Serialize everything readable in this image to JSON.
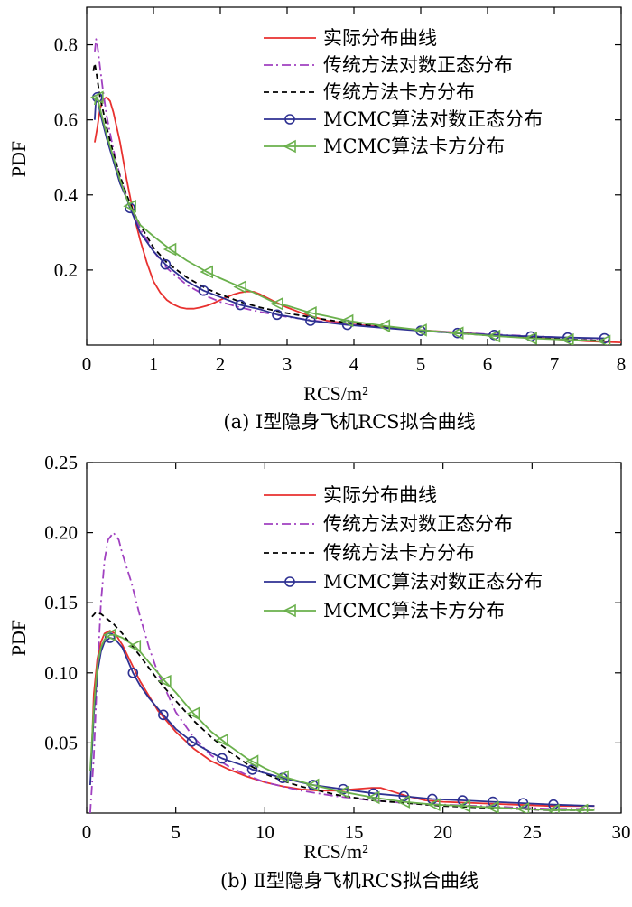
{
  "chart_data": [
    {
      "type": "line",
      "panel": "a",
      "caption": "(a) Ⅰ型隐身飞机RCS拟合曲线",
      "xlabel": "RCS/m²",
      "ylabel": "PDF",
      "xlim": [
        0,
        8
      ],
      "ylim": [
        0,
        0.9
      ],
      "xticks": [
        0,
        1,
        2,
        3,
        4,
        5,
        6,
        7,
        8
      ],
      "xtick_labels": [
        "0",
        "1",
        "2",
        "3",
        "4",
        "5",
        "6",
        "7",
        "8"
      ],
      "yticks": [
        0.2,
        0.4,
        0.6,
        0.8
      ],
      "ytick_labels": [
        "0.2",
        "0.4",
        "0.6",
        "0.8"
      ],
      "legend_position": "top-right",
      "series": [
        {
          "name": "实际分布曲线",
          "color": "#e8312f",
          "style": "solid",
          "marker": "none",
          "x": [
            0.12,
            0.16,
            0.2,
            0.25,
            0.3,
            0.35,
            0.4,
            0.5,
            0.6,
            0.7,
            0.8,
            0.9,
            1.0,
            1.1,
            1.2,
            1.3,
            1.4,
            1.5,
            1.6,
            1.7,
            1.8,
            1.9,
            2.0,
            2.1,
            2.2,
            2.3,
            2.4,
            2.5,
            2.6,
            2.8,
            3.0,
            3.3,
            3.6,
            4.0,
            4.5,
            5.0,
            5.5,
            6.0,
            6.5,
            7.0,
            7.5,
            8.0
          ],
          "y": [
            0.54,
            0.58,
            0.63,
            0.655,
            0.66,
            0.65,
            0.62,
            0.54,
            0.44,
            0.35,
            0.28,
            0.22,
            0.17,
            0.14,
            0.12,
            0.108,
            0.1,
            0.097,
            0.097,
            0.1,
            0.105,
            0.112,
            0.12,
            0.128,
            0.135,
            0.14,
            0.143,
            0.142,
            0.135,
            0.117,
            0.1,
            0.08,
            0.065,
            0.055,
            0.048,
            0.04,
            0.034,
            0.028,
            0.022,
            0.016,
            0.01,
            0.007
          ]
        },
        {
          "name": "传统方法对数正态分布",
          "color": "#a040c0",
          "style": "dashdot",
          "marker": "none",
          "x": [
            0.12,
            0.14,
            0.16,
            0.2,
            0.25,
            0.3,
            0.4,
            0.5,
            0.6,
            0.7,
            0.8,
            1.0,
            1.2,
            1.5,
            1.8,
            2.0,
            2.3,
            2.6,
            3.0,
            3.5,
            4.0,
            4.5,
            5.0,
            5.5,
            6.0,
            6.5,
            7.0,
            7.5,
            7.75
          ],
          "y": [
            0.78,
            0.815,
            0.8,
            0.74,
            0.67,
            0.61,
            0.52,
            0.45,
            0.395,
            0.35,
            0.31,
            0.25,
            0.205,
            0.16,
            0.13,
            0.115,
            0.1,
            0.088,
            0.075,
            0.063,
            0.054,
            0.046,
            0.04,
            0.034,
            0.029,
            0.025,
            0.021,
            0.018,
            0.016
          ]
        },
        {
          "name": "传统方法卡方分布",
          "color": "#000000",
          "style": "dashed",
          "marker": "none",
          "x": [
            0.1,
            0.12,
            0.14,
            0.2,
            0.3,
            0.4,
            0.5,
            0.6,
            0.7,
            0.8,
            1.0,
            1.2,
            1.5,
            1.8,
            2.0,
            2.3,
            2.6,
            3.0,
            3.5,
            4.0,
            4.5,
            5.0,
            5.5,
            6.0,
            6.5,
            7.0,
            7.5,
            7.75
          ],
          "y": [
            0.73,
            0.75,
            0.73,
            0.66,
            0.58,
            0.51,
            0.45,
            0.4,
            0.355,
            0.32,
            0.26,
            0.22,
            0.18,
            0.15,
            0.135,
            0.115,
            0.1,
            0.085,
            0.07,
            0.057,
            0.047,
            0.039,
            0.032,
            0.026,
            0.021,
            0.017,
            0.013,
            0.012
          ]
        },
        {
          "name": "MCMC算法对数正态分布",
          "color": "#2e3192",
          "style": "solid",
          "marker": "circle",
          "x": [
            0.12,
            0.14,
            0.16,
            0.2,
            0.3,
            0.4,
            0.5,
            0.6,
            0.65,
            0.8,
            1.0,
            1.18,
            1.5,
            1.75,
            2.0,
            2.3,
            2.6,
            2.85,
            3.0,
            3.35,
            3.6,
            3.9,
            4.5,
            5.0,
            5.55,
            6.1,
            6.65,
            7.2,
            7.75
          ],
          "y": [
            0.6,
            0.66,
            0.66,
            0.62,
            0.55,
            0.49,
            0.43,
            0.39,
            0.365,
            0.3,
            0.25,
            0.215,
            0.17,
            0.145,
            0.128,
            0.107,
            0.095,
            0.081,
            0.077,
            0.065,
            0.06,
            0.054,
            0.045,
            0.038,
            0.032,
            0.027,
            0.023,
            0.02,
            0.018
          ],
          "marker_x": [
            0.16,
            0.65,
            1.18,
            1.75,
            2.3,
            2.85,
            3.35,
            3.9,
            5.0,
            5.55,
            6.1,
            6.65,
            7.2,
            7.75
          ]
        },
        {
          "name": "MCMC算法卡方分布",
          "color": "#6ab04c",
          "style": "solid",
          "marker": "triangle-left",
          "x": [
            0.12,
            0.14,
            0.16,
            0.2,
            0.3,
            0.4,
            0.5,
            0.6,
            0.65,
            0.8,
            1.0,
            1.25,
            1.5,
            1.8,
            2.0,
            2.3,
            2.5,
            2.85,
            3.0,
            3.35,
            3.6,
            3.9,
            4.5,
            5.0,
            5.55,
            6.1,
            6.65,
            7.2,
            7.75
          ],
          "y": [
            0.64,
            0.66,
            0.66,
            0.63,
            0.56,
            0.5,
            0.44,
            0.39,
            0.37,
            0.32,
            0.29,
            0.255,
            0.225,
            0.195,
            0.178,
            0.155,
            0.14,
            0.11,
            0.105,
            0.086,
            0.077,
            0.065,
            0.05,
            0.04,
            0.032,
            0.024,
            0.018,
            0.014,
            0.01
          ],
          "marker_x": [
            0.16,
            0.65,
            1.25,
            1.8,
            2.3,
            2.85,
            3.35,
            3.9,
            4.45,
            5.0,
            5.55,
            6.1,
            6.65,
            7.2,
            7.75
          ]
        }
      ]
    },
    {
      "type": "line",
      "panel": "b",
      "caption": "(b) Ⅱ型隐身飞机RCS拟合曲线",
      "xlabel": "RCS/m²",
      "ylabel": "PDF",
      "xlim": [
        0,
        30
      ],
      "ylim": [
        0,
        0.25
      ],
      "xticks": [
        0,
        5,
        10,
        15,
        20,
        25,
        30
      ],
      "xtick_labels": [
        "0",
        "5",
        "10",
        "15",
        "20",
        "25",
        "30"
      ],
      "yticks": [
        0.05,
        0.1,
        0.15,
        0.2,
        0.25
      ],
      "ytick_labels": [
        "0.05",
        "0.10",
        "0.15",
        "0.20",
        "0.25"
      ],
      "legend_position": "top-right",
      "series": [
        {
          "name": "实际分布曲线",
          "color": "#e8312f",
          "style": "solid",
          "marker": "none",
          "x": [
            0.3,
            0.4,
            0.6,
            0.8,
            1.0,
            1.3,
            1.6,
            2.0,
            2.5,
            3.0,
            4.0,
            5.0,
            6.0,
            7.0,
            8.0,
            9.0,
            10.0,
            11.0,
            12.0,
            13.0,
            14.0,
            15.0,
            16.0,
            16.5,
            17.0,
            18.0,
            19.0,
            20.0,
            22.0,
            24.0,
            26.0,
            28.5
          ],
          "y": [
            0.05,
            0.085,
            0.11,
            0.122,
            0.128,
            0.13,
            0.128,
            0.12,
            0.107,
            0.094,
            0.073,
            0.058,
            0.046,
            0.037,
            0.031,
            0.026,
            0.022,
            0.019,
            0.017,
            0.016,
            0.016,
            0.017,
            0.018,
            0.018,
            0.016,
            0.012,
            0.009,
            0.008,
            0.007,
            0.006,
            0.005,
            0.005
          ]
        },
        {
          "name": "传统方法对数正态分布",
          "color": "#a040c0",
          "style": "dashdot",
          "marker": "none",
          "x": [
            0.2,
            0.4,
            0.6,
            0.8,
            1.0,
            1.2,
            1.5,
            1.8,
            2.0,
            2.5,
            3.0,
            3.5,
            4.0,
            5.0,
            6.0,
            7.0,
            8.0,
            9.0,
            10.0,
            12.0,
            14.0,
            16.0,
            18.0,
            20.0,
            22.0,
            24.0,
            26.0,
            28.5
          ],
          "y": [
            0.0,
            0.04,
            0.1,
            0.15,
            0.18,
            0.195,
            0.2,
            0.195,
            0.185,
            0.165,
            0.14,
            0.118,
            0.1,
            0.072,
            0.054,
            0.041,
            0.033,
            0.027,
            0.022,
            0.016,
            0.012,
            0.009,
            0.007,
            0.006,
            0.005,
            0.004,
            0.003,
            0.003
          ]
        },
        {
          "name": "传统方法卡方分布",
          "color": "#000000",
          "style": "dashed",
          "marker": "none",
          "x": [
            0.3,
            0.5,
            0.8,
            1.0,
            1.5,
            2.0,
            3.0,
            4.0,
            5.0,
            6.0,
            7.0,
            8.0,
            9.0,
            10.0,
            11.0,
            12.0,
            14.0,
            16.0,
            18.0,
            20.0,
            22.0,
            24.0,
            26.0,
            28.5
          ],
          "y": [
            0.14,
            0.143,
            0.142,
            0.14,
            0.135,
            0.128,
            0.112,
            0.095,
            0.08,
            0.066,
            0.054,
            0.044,
            0.035,
            0.028,
            0.023,
            0.019,
            0.013,
            0.009,
            0.007,
            0.005,
            0.004,
            0.003,
            0.002,
            0.002
          ]
        },
        {
          "name": "MCMC算法对数正态分布",
          "color": "#2e3192",
          "style": "solid",
          "marker": "circle",
          "x": [
            0.2,
            0.4,
            0.6,
            0.8,
            1.0,
            1.3,
            1.6,
            2.0,
            2.6,
            3.0,
            3.5,
            4.3,
            5.0,
            5.9,
            7.0,
            7.6,
            9.0,
            9.3,
            11.0,
            12.7,
            14.4,
            16.1,
            17.8,
            19.4,
            21.1,
            22.8,
            24.5,
            26.2,
            28.5
          ],
          "y": [
            0.02,
            0.07,
            0.1,
            0.115,
            0.122,
            0.125,
            0.124,
            0.118,
            0.1,
            0.091,
            0.082,
            0.07,
            0.06,
            0.051,
            0.043,
            0.039,
            0.033,
            0.031,
            0.025,
            0.02,
            0.017,
            0.014,
            0.012,
            0.01,
            0.009,
            0.008,
            0.007,
            0.006,
            0.005
          ],
          "marker_x": [
            1.3,
            2.6,
            4.3,
            5.9,
            7.6,
            9.3,
            11.0,
            12.7,
            14.4,
            16.1,
            17.8,
            19.4,
            21.1,
            22.8,
            24.5,
            26.2
          ]
        },
        {
          "name": "MCMC算法卡方分布",
          "color": "#6ab04c",
          "style": "solid",
          "marker": "triangle-left",
          "x": [
            0.2,
            0.4,
            0.6,
            0.8,
            1.0,
            1.3,
            1.6,
            2.0,
            2.7,
            3.0,
            4.0,
            4.4,
            5.0,
            6.0,
            7.0,
            8.0,
            9.0,
            10.0,
            11.0,
            12.7,
            14.4,
            16.1,
            17.8,
            19.5,
            21.2,
            22.8,
            24.5,
            26.2,
            28.5
          ],
          "y": [
            0.03,
            0.075,
            0.105,
            0.118,
            0.124,
            0.127,
            0.127,
            0.125,
            0.119,
            0.115,
            0.1,
            0.094,
            0.086,
            0.071,
            0.058,
            0.048,
            0.039,
            0.032,
            0.026,
            0.02,
            0.015,
            0.011,
            0.008,
            0.006,
            0.005,
            0.004,
            0.003,
            0.002,
            0.002
          ],
          "marker_x": [
            1.3,
            2.7,
            4.4,
            6.0,
            7.6,
            9.3,
            11.0,
            12.7,
            14.4,
            16.1,
            17.8,
            19.5,
            21.2,
            22.8,
            24.5,
            26.2,
            27.8
          ]
        }
      ]
    }
  ]
}
